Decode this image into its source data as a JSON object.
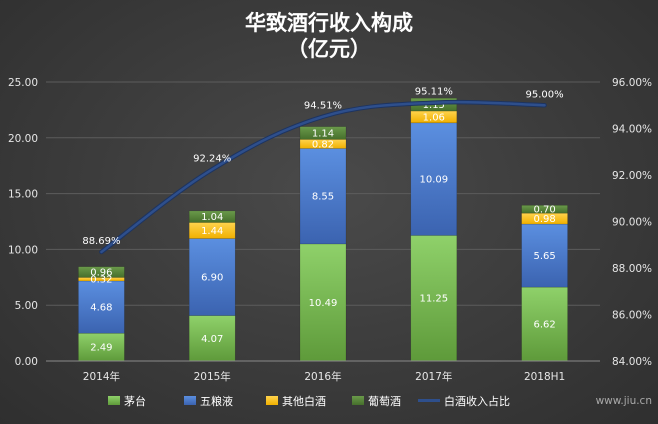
{
  "chart_data": {
    "type": "bar",
    "stacked": true,
    "title": "华致酒行收入构成",
    "subtitle": "（亿元）",
    "categories": [
      "2014年",
      "2015年",
      "2016年",
      "2017年",
      "2018H1"
    ],
    "series": [
      {
        "name": "茅台",
        "values": [
          2.49,
          4.07,
          10.49,
          11.25,
          6.62
        ],
        "color": "#70ad47"
      },
      {
        "name": "五粮液",
        "values": [
          4.68,
          6.9,
          8.55,
          10.09,
          5.65
        ],
        "color": "#4472c4"
      },
      {
        "name": "其他白酒",
        "values": [
          0.32,
          1.44,
          0.82,
          1.06,
          0.98
        ],
        "color": "#ffc000"
      },
      {
        "name": "葡萄酒",
        "values": [
          0.96,
          1.04,
          1.14,
          1.15,
          0.7
        ],
        "color": "#548235"
      }
    ],
    "series_labels": [
      [
        "2.49",
        "4.07",
        "10.49",
        "11.25",
        "6.62"
      ],
      [
        "4.68",
        "6.90",
        "8.55",
        "10.09",
        "5.65"
      ],
      [
        "0.32",
        "1.44",
        "0.82",
        "1.06",
        "0.98"
      ],
      [
        "0.96",
        "1.04",
        "1.14",
        "1.15",
        "0.70"
      ]
    ],
    "line": {
      "name": "白酒收入占比",
      "values": [
        88.69,
        92.24,
        94.51,
        95.11,
        95.0
      ],
      "labels": [
        "88.69%",
        "92.24%",
        "94.51%",
        "95.11%",
        "95.00%"
      ],
      "color": "#264478"
    },
    "y_left": {
      "min": 0,
      "max": 25,
      "ticks": [
        "0.00",
        "5.00",
        "10.00",
        "15.00",
        "20.00",
        "25.00"
      ]
    },
    "y_right": {
      "min": 84,
      "max": 96,
      "ticks": [
        "84.00%",
        "86.00%",
        "88.00%",
        "90.00%",
        "92.00%",
        "94.00%",
        "96.00%"
      ]
    },
    "grid": true,
    "legend_position": "bottom"
  },
  "watermark": "www.jiu.cn"
}
